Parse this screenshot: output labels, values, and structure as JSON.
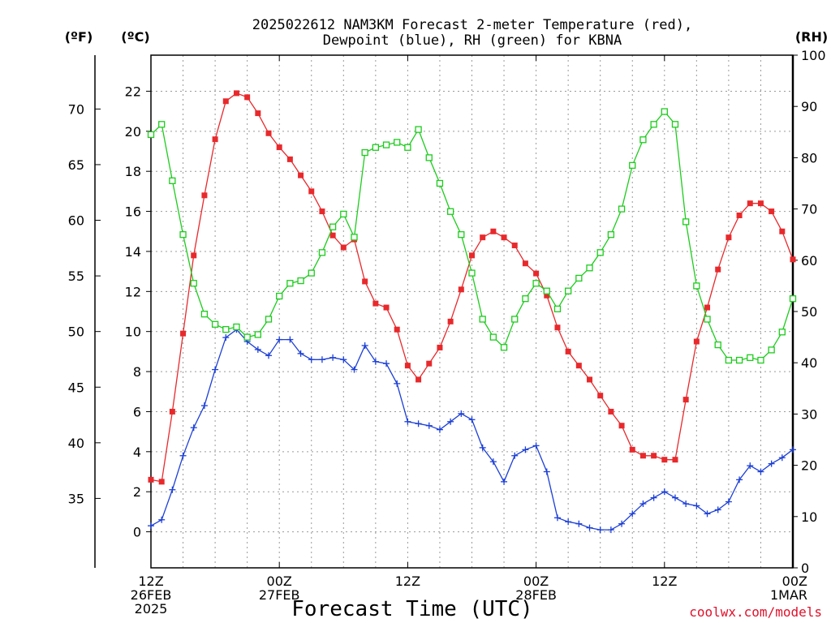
{
  "title_line1": "2025022612 NAM3KM Forecast 2-meter Temperature (red),",
  "title_line2": "Dewpoint (blue), RH (green) for KBNA",
  "credit": "coolwx.com/models",
  "chart_data": {
    "type": "line",
    "title": "2025022612 NAM3KM Forecast 2-meter Temperature (red), Dewpoint (blue), RH (green) for KBNA",
    "xlabel": "Forecast Time (UTC)",
    "x_unit": "forecast hour",
    "xlim": [
      0,
      60
    ],
    "x_ticks": [
      {
        "x": 0,
        "lines": [
          "12Z",
          "26FEB",
          "2025"
        ]
      },
      {
        "x": 12,
        "lines": [
          "00Z",
          "27FEB"
        ]
      },
      {
        "x": 24,
        "lines": [
          "12Z"
        ]
      },
      {
        "x": 36,
        "lines": [
          "00Z",
          "28FEB"
        ]
      },
      {
        "x": 48,
        "lines": [
          "12Z"
        ]
      },
      {
        "x": 60,
        "lines": [
          "00Z",
          "1MAR"
        ]
      }
    ],
    "left_axis_c": {
      "label": "(ºC)",
      "ylim": [
        -1.8,
        23.8
      ],
      "ticks": [
        0,
        2,
        4,
        6,
        8,
        10,
        12,
        14,
        16,
        18,
        20,
        22
      ]
    },
    "left_axis_f": {
      "label": "(ºF)",
      "ticks": [
        35,
        40,
        45,
        50,
        55,
        60,
        65,
        70
      ]
    },
    "right_axis": {
      "label": "(RH)",
      "ylim": [
        0,
        100
      ],
      "ticks": [
        0,
        10,
        20,
        30,
        40,
        50,
        60,
        70,
        80,
        90,
        100
      ]
    },
    "grid": true,
    "colors": {
      "temperature": "#e8292c",
      "dewpoint": "#1c3fd6",
      "rh": "#1ccc1c"
    },
    "series": [
      {
        "name": "Temperature",
        "axis": "celsius",
        "values": [
          2.6,
          2.5,
          6.0,
          9.9,
          13.8,
          16.8,
          19.6,
          21.5,
          21.9,
          21.7,
          20.9,
          19.9,
          19.2,
          18.6,
          17.8,
          17.0,
          16.0,
          14.8,
          14.2,
          14.6,
          12.5,
          11.4,
          11.2,
          10.1,
          8.3,
          7.6,
          8.4,
          9.2,
          10.5,
          12.1,
          13.8,
          14.7,
          15.0,
          14.7,
          14.3,
          13.4,
          12.9,
          11.8,
          10.2,
          9.0,
          8.3,
          7.6,
          6.8,
          6.0,
          5.3,
          4.1,
          3.8,
          3.8,
          3.6,
          3.6,
          6.6,
          9.5,
          11.2,
          13.1,
          14.7,
          15.8,
          16.4,
          16.4,
          16.0,
          15.0,
          13.6
        ]
      },
      {
        "name": "Dewpoint",
        "axis": "celsius",
        "values": [
          0.3,
          0.6,
          2.1,
          3.8,
          5.2,
          6.3,
          8.1,
          9.7,
          10.1,
          9.5,
          9.1,
          8.8,
          9.6,
          9.6,
          8.9,
          8.6,
          8.6,
          8.7,
          8.6,
          8.1,
          9.3,
          8.5,
          8.4,
          7.4,
          5.5,
          5.4,
          5.3,
          5.1,
          5.5,
          5.9,
          5.6,
          4.2,
          3.5,
          2.5,
          3.8,
          4.1,
          4.3,
          3.0,
          0.7,
          0.5,
          0.4,
          0.2,
          0.1,
          0.1,
          0.4,
          0.9,
          1.4,
          1.7,
          2.0,
          1.7,
          1.4,
          1.3,
          0.9,
          1.1,
          1.5,
          2.6,
          3.3,
          3.0,
          3.4,
          3.7,
          4.1
        ]
      },
      {
        "name": "RH",
        "axis": "rh",
        "values": [
          84.5,
          86.5,
          75.5,
          65.0,
          55.5,
          49.5,
          47.5,
          46.5,
          47.0,
          45.0,
          45.5,
          48.5,
          53.0,
          55.5,
          56.0,
          57.5,
          61.5,
          66.5,
          69.0,
          64.5,
          81.0,
          82.0,
          82.5,
          83.0,
          82.0,
          85.5,
          80.0,
          75.0,
          69.5,
          65.0,
          57.5,
          48.5,
          45.0,
          43.0,
          48.5,
          52.5,
          55.5,
          54.0,
          50.5,
          54.0,
          56.5,
          58.5,
          61.5,
          65.0,
          70.0,
          78.5,
          83.5,
          86.5,
          89.0,
          86.5,
          67.5,
          55.0,
          48.5,
          43.5,
          40.5,
          40.5,
          41.0,
          40.5,
          42.5,
          46.0,
          52.5
        ]
      }
    ]
  }
}
